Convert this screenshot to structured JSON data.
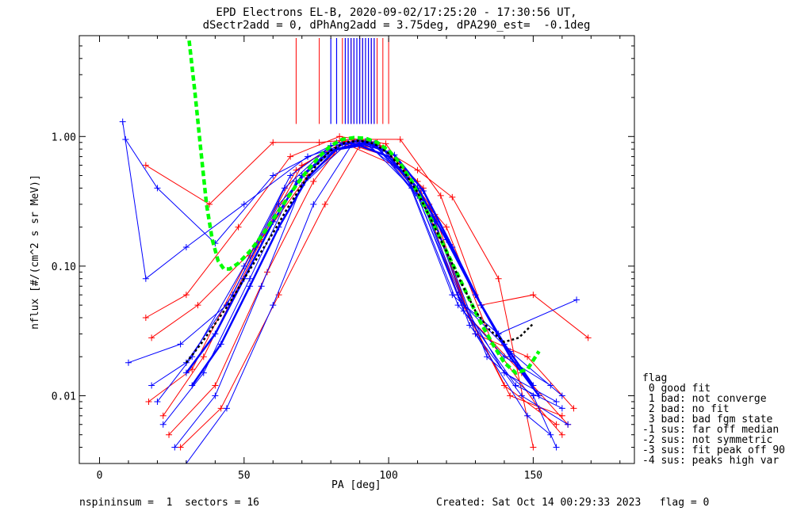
{
  "title_line1": "EPD Electrons EL-B, 2020-09-02/17:25:20 - 17:30:56 UT,",
  "title_line2": "dSectr2add = 0, dPhAng2add = 3.75deg, dPA290_est=  -0.1deg",
  "footer": {
    "left": "nspininsum =  1  sectors = 16",
    "right": "Created: Sat Oct 14 00:29:33 2023   flag = 0"
  },
  "legend": {
    "header": "flag",
    "items": [
      " 0 good fit",
      " 1 bad: not converge",
      " 2 bad: no fit",
      " 3 bad: bad fgm state",
      "-1 sus: far off median",
      "-2 sus: not symmetric",
      "-3 sus: fit peak off 90",
      "-4 sus: peaks high var"
    ]
  },
  "chart_data": {
    "type": "line",
    "title": "EPD Electrons EL-B, 2020-09-02/17:25:20 - 17:30:56 UT, dSectr2add = 0, dPhAng2add = 3.75deg, dPA290_est=  -0.1deg",
    "xlabel": "PA [deg]",
    "ylabel": "nflux [#/(cm^2 s sr MeV)]",
    "xlim": [
      -7,
      185
    ],
    "ylim": [
      0.003,
      6
    ],
    "yscale": "log",
    "grid": false,
    "xticks": [
      0,
      50,
      100,
      150
    ],
    "xtick_labels": [
      "0",
      "50",
      "100",
      "150"
    ],
    "yticks": [
      0.01,
      0.1,
      1.0
    ],
    "ytick_labels": [
      "0.01",
      "0.10",
      "1.00"
    ],
    "colors": {
      "red": "#ff0000",
      "blue": "#0000ff",
      "green": "#00ff00",
      "black": "#000000"
    },
    "series": [
      {
        "color": "#ff0000",
        "style": "thin",
        "x": [
          17,
          32,
          52,
          68,
          84,
          96,
          110,
          124,
          140,
          158
        ],
        "y": [
          0.009,
          0.016,
          0.12,
          0.55,
          0.95,
          0.9,
          0.45,
          0.06,
          0.012,
          0.006
        ]
      },
      {
        "color": "#ff0000",
        "style": "thin",
        "x": [
          22,
          36,
          56,
          70,
          85,
          97,
          112,
          126,
          142,
          160
        ],
        "y": [
          0.007,
          0.02,
          0.16,
          0.6,
          0.92,
          0.85,
          0.4,
          0.05,
          0.01,
          0.007
        ]
      },
      {
        "color": "#ff0000",
        "style": "thin",
        "x": [
          16,
          30,
          48,
          66,
          83,
          99,
          114,
          128,
          146,
          162
        ],
        "y": [
          0.04,
          0.06,
          0.2,
          0.7,
          1.0,
          0.88,
          0.3,
          0.04,
          0.015,
          0.006
        ]
      },
      {
        "color": "#ff0000",
        "style": "thin",
        "x": [
          18,
          34,
          54,
          72,
          86,
          100,
          116,
          130,
          148,
          164
        ],
        "y": [
          0.028,
          0.05,
          0.14,
          0.5,
          0.88,
          0.7,
          0.25,
          0.03,
          0.02,
          0.008
        ]
      },
      {
        "color": "#ff0000",
        "style": "thin",
        "x": [
          16,
          38,
          60,
          76,
          88,
          104,
          118,
          132,
          150,
          169
        ],
        "y": [
          0.6,
          0.3,
          0.9,
          0.9,
          0.95,
          0.95,
          0.35,
          0.05,
          0.06,
          0.028
        ]
      },
      {
        "color": "#ff0000",
        "style": "thin",
        "x": [
          24,
          40,
          58,
          74,
          84,
          102,
          120,
          136,
          152,
          160
        ],
        "y": [
          0.005,
          0.012,
          0.09,
          0.45,
          0.9,
          0.6,
          0.2,
          0.025,
          0.008,
          0.005
        ]
      },
      {
        "color": "#ff0000",
        "style": "thin",
        "x": [
          28,
          42,
          62,
          78,
          90,
          98,
          110,
          122,
          138,
          150
        ],
        "y": [
          0.004,
          0.008,
          0.06,
          0.3,
          0.85,
          0.8,
          0.55,
          0.34,
          0.08,
          0.004
        ]
      },
      {
        "color": "#0000ff",
        "style": "thin",
        "x": [
          9,
          20,
          40,
          60,
          80,
          92,
          108,
          124,
          140,
          156
        ],
        "y": [
          0.95,
          0.4,
          0.15,
          0.5,
          0.85,
          0.92,
          0.4,
          0.05,
          0.02,
          0.012
        ]
      },
      {
        "color": "#0000ff",
        "style": "thin",
        "x": [
          8,
          16,
          30,
          50,
          72,
          90,
          106,
          122,
          138,
          165
        ],
        "y": [
          1.3,
          0.08,
          0.14,
          0.3,
          0.7,
          0.95,
          0.5,
          0.06,
          0.03,
          0.055
        ]
      },
      {
        "color": "#0000ff",
        "style": "thin",
        "x": [
          18,
          30,
          46,
          64,
          80,
          94,
          108,
          126,
          144,
          160
        ],
        "y": [
          0.012,
          0.018,
          0.06,
          0.4,
          0.85,
          0.9,
          0.45,
          0.045,
          0.012,
          0.008
        ]
      },
      {
        "color": "#0000ff",
        "style": "thin",
        "x": [
          20,
          32,
          50,
          66,
          82,
          96,
          110,
          124,
          140,
          158
        ],
        "y": [
          0.009,
          0.02,
          0.1,
          0.5,
          0.9,
          0.85,
          0.35,
          0.06,
          0.015,
          0.009
        ]
      },
      {
        "color": "#0000ff",
        "style": "thin",
        "x": [
          22,
          36,
          52,
          68,
          84,
          95,
          112,
          128,
          146,
          162
        ],
        "y": [
          0.006,
          0.015,
          0.08,
          0.45,
          0.88,
          0.88,
          0.3,
          0.035,
          0.01,
          0.006
        ]
      },
      {
        "color": "#0000ff",
        "style": "thin",
        "x": [
          10,
          28,
          44,
          62,
          78,
          94,
          110,
          126,
          142,
          160
        ],
        "y": [
          0.018,
          0.025,
          0.05,
          0.3,
          0.75,
          0.9,
          0.4,
          0.05,
          0.022,
          0.01
        ]
      },
      {
        "color": "#0000ff",
        "style": "thin",
        "x": [
          26,
          40,
          56,
          70,
          86,
          98,
          114,
          130,
          148,
          156
        ],
        "y": [
          0.004,
          0.01,
          0.07,
          0.42,
          0.9,
          0.8,
          0.28,
          0.03,
          0.007,
          0.005
        ]
      },
      {
        "color": "#0000ff",
        "style": "thin",
        "x": [
          30,
          44,
          60,
          74,
          88,
          100,
          116,
          134,
          150,
          158
        ],
        "y": [
          0.003,
          0.008,
          0.05,
          0.3,
          0.92,
          0.75,
          0.22,
          0.02,
          0.01,
          0.004
        ]
      },
      {
        "color": "#0000ff",
        "style": "thick",
        "x": [
          30,
          40,
          50,
          60,
          70,
          80,
          90,
          100,
          110,
          120,
          130,
          140,
          150
        ],
        "y": [
          0.015,
          0.03,
          0.08,
          0.22,
          0.5,
          0.78,
          0.85,
          0.7,
          0.4,
          0.16,
          0.06,
          0.025,
          0.012
        ]
      },
      {
        "color": "#0000ff",
        "style": "thick",
        "x": [
          32,
          42,
          52,
          62,
          72,
          82,
          92,
          102,
          112,
          122,
          132,
          142,
          152
        ],
        "y": [
          0.012,
          0.025,
          0.07,
          0.2,
          0.48,
          0.8,
          0.9,
          0.72,
          0.38,
          0.14,
          0.05,
          0.02,
          0.01
        ]
      },
      {
        "color": "#00ff00",
        "style": "fit-dashed",
        "x": [
          31,
          33,
          35,
          37,
          39,
          41,
          43,
          45,
          48,
          52,
          56,
          60,
          64,
          68,
          72,
          76,
          80,
          84,
          88,
          92,
          96,
          100,
          104,
          108,
          112,
          116,
          120,
          124,
          128,
          132,
          136,
          140,
          144,
          148,
          152
        ],
        "y": [
          5.5,
          2.2,
          0.8,
          0.3,
          0.16,
          0.11,
          0.095,
          0.095,
          0.105,
          0.13,
          0.17,
          0.23,
          0.31,
          0.42,
          0.55,
          0.7,
          0.85,
          0.95,
          0.98,
          0.97,
          0.9,
          0.78,
          0.62,
          0.45,
          0.3,
          0.2,
          0.13,
          0.085,
          0.055,
          0.036,
          0.025,
          0.018,
          0.015,
          0.016,
          0.022
        ]
      },
      {
        "color": "#000000",
        "style": "fit-dotted",
        "x": [
          30,
          35,
          40,
          45,
          50,
          55,
          60,
          65,
          70,
          75,
          80,
          85,
          90,
          95,
          100,
          105,
          110,
          115,
          120,
          125,
          130,
          135,
          140,
          145,
          150
        ],
        "y": [
          0.018,
          0.025,
          0.036,
          0.052,
          0.08,
          0.12,
          0.18,
          0.28,
          0.42,
          0.6,
          0.78,
          0.9,
          0.93,
          0.88,
          0.74,
          0.55,
          0.37,
          0.22,
          0.13,
          0.075,
          0.045,
          0.032,
          0.026,
          0.028,
          0.036
        ]
      }
    ],
    "peak_markers": {
      "red_x": [
        68,
        76,
        84,
        85,
        86,
        87,
        88,
        89,
        90,
        91,
        92,
        93,
        94,
        95,
        96,
        98,
        100
      ],
      "blue_x": [
        80,
        82,
        85,
        86,
        87,
        88,
        89,
        90,
        91,
        92,
        93,
        94,
        95
      ]
    }
  }
}
